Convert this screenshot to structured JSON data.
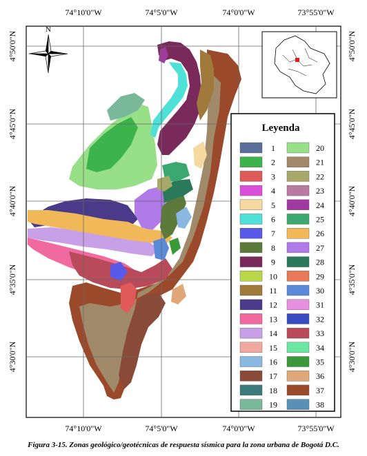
{
  "map": {
    "top_lon_labels": [
      "74°10'0\"W",
      "74°5'0\"W",
      "74°0'0\"W",
      "73°55'0\"W"
    ],
    "bottom_lon_labels": [
      "74°10'0\"W",
      "74°5'0\"W",
      "74°0'0\"W",
      "73°55'0\"W"
    ],
    "left_lat_labels": [
      "4°50'0\"N",
      "4°45'0\"N",
      "4°40'0\"N",
      "4°35'0\"N",
      "4°30'0\"N"
    ],
    "right_lat_labels": [
      "4°50'0\"N",
      "4°45'0\"N",
      "4°40'0\"N",
      "4°35'0\"N",
      "4°30'0\"N"
    ],
    "north_letter": "N",
    "caption": "Figura 3-15. Zonas geológico/geotécnicas de respuesta sísmica para la zona urbana de Bogotá D.C."
  },
  "legend": {
    "title": "Leyenda",
    "items": [
      {
        "label": "1",
        "color": "#5a6e9a"
      },
      {
        "label": "2",
        "color": "#3cb44b"
      },
      {
        "label": "3",
        "color": "#e05a5a"
      },
      {
        "label": "4",
        "color": "#d94fd9"
      },
      {
        "label": "5",
        "color": "#f5d9a0"
      },
      {
        "label": "6",
        "color": "#4fe0d8"
      },
      {
        "label": "7",
        "color": "#5a5ae8"
      },
      {
        "label": "8",
        "color": "#5c7a3a"
      },
      {
        "label": "9",
        "color": "#7a2a5a"
      },
      {
        "label": "10",
        "color": "#b8d84a"
      },
      {
        "label": "11",
        "color": "#a07a3a"
      },
      {
        "label": "12",
        "color": "#4a3a8a"
      },
      {
        "label": "13",
        "color": "#f06aa0"
      },
      {
        "label": "14",
        "color": "#c8a0e8"
      },
      {
        "label": "15",
        "color": "#f0a8a0"
      },
      {
        "label": "16",
        "color": "#8ab8e0"
      },
      {
        "label": "17",
        "color": "#8a4a3a"
      },
      {
        "label": "18",
        "color": "#3a7a7a"
      },
      {
        "label": "19",
        "color": "#7ab89a"
      },
      {
        "label": "20",
        "color": "#98e088"
      },
      {
        "label": "21",
        "color": "#a08a6a"
      },
      {
        "label": "22",
        "color": "#a8a868"
      },
      {
        "label": "23",
        "color": "#b87aa0"
      },
      {
        "label": "24",
        "color": "#a03aa0"
      },
      {
        "label": "25",
        "color": "#3aa870"
      },
      {
        "label": "26",
        "color": "#f0b858"
      },
      {
        "label": "27",
        "color": "#b07ae8"
      },
      {
        "label": "28",
        "color": "#2a7a5a"
      },
      {
        "label": "29",
        "color": "#e87a5a"
      },
      {
        "label": "30",
        "color": "#5a8ad8"
      },
      {
        "label": "31",
        "color": "#e890e0"
      },
      {
        "label": "32",
        "color": "#3a4ac0"
      },
      {
        "label": "33",
        "color": "#b84a5a"
      },
      {
        "label": "34",
        "color": "#6ae8a0"
      },
      {
        "label": "35",
        "color": "#3a9a3a"
      },
      {
        "label": "36",
        "color": "#e0a878"
      },
      {
        "label": "37",
        "color": "#9a4a2a"
      },
      {
        "label": "38",
        "color": "#5a90b8"
      }
    ]
  }
}
